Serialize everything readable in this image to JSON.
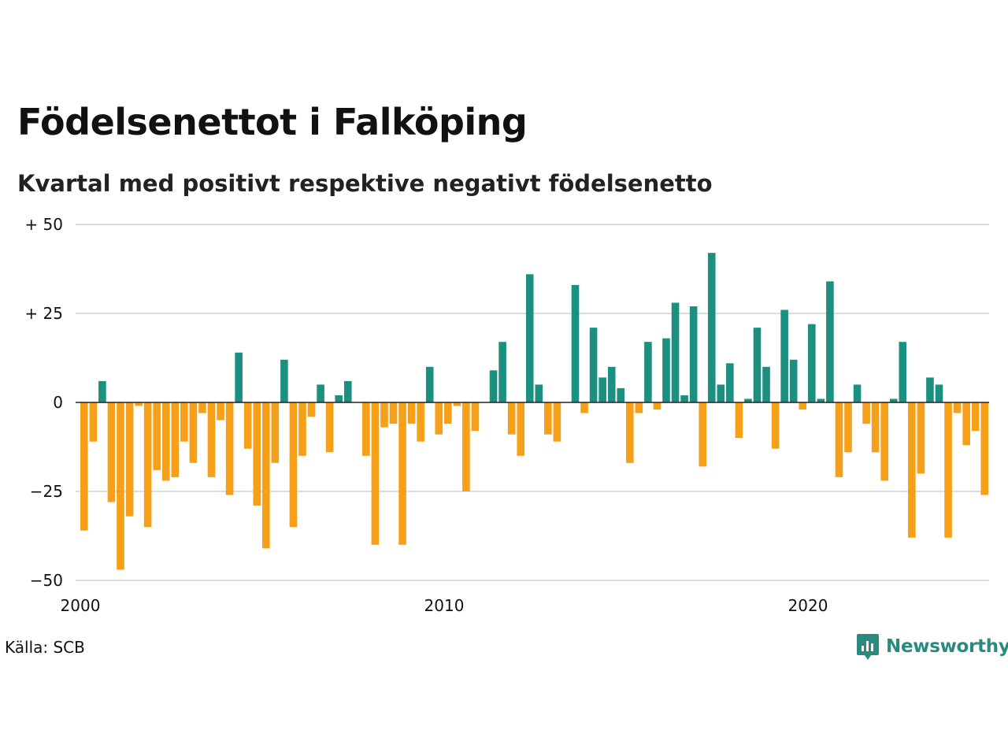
{
  "title": "Födelsenettot i Falköping",
  "subtitle": "Kvartal med positivt respektive negativt födelsenetto",
  "source": "Källa: SCB",
  "brand": "Newsworthy",
  "colors": {
    "positive": "#1b8f80",
    "negative": "#f6a01a",
    "grid": "#dcdcdc",
    "zero": "#222222",
    "brand": "#2a8a7f"
  },
  "icons": {
    "brand": "newsworthy-logo-icon"
  },
  "chart_data": {
    "type": "bar",
    "title": "Födelsenettot i Falköping",
    "subtitle": "Kvartal med positivt respektive negativt födelsenetto",
    "xlabel": "",
    "ylabel": "",
    "ylim": [
      -50,
      50
    ],
    "yticks": [
      50,
      25,
      0,
      -25,
      -50
    ],
    "ytick_labels": [
      "+ 50",
      "+ 25",
      "0",
      "−25",
      "−50"
    ],
    "xticks": [
      2000,
      2010,
      2020
    ],
    "xtick_labels": [
      "2000",
      "2010",
      "2020"
    ],
    "x_start_year": 2000,
    "periods_per_year": 4,
    "grid": true,
    "values": [
      -36,
      -11,
      6,
      -28,
      -47,
      -32,
      -1,
      -35,
      -19,
      -22,
      -21,
      -11,
      -17,
      -3,
      -21,
      -5,
      -26,
      14,
      -13,
      -29,
      -41,
      -17,
      12,
      -35,
      -15,
      -4,
      5,
      -14,
      2,
      6,
      0,
      -15,
      -40,
      -7,
      -6,
      -40,
      -6,
      -11,
      10,
      -9,
      -6,
      -1,
      -25,
      -8,
      0,
      9,
      17,
      -9,
      -15,
      36,
      5,
      -9,
      -11,
      0,
      33,
      -3,
      21,
      7,
      10,
      4,
      -17,
      -3,
      17,
      -2,
      18,
      28,
      2,
      27,
      -18,
      42,
      5,
      11,
      -10,
      1,
      21,
      10,
      -13,
      26,
      12,
      -2,
      22,
      1,
      34,
      -21,
      -14,
      5,
      -6,
      -14,
      -22,
      1,
      17,
      -38,
      -20,
      7,
      5,
      -38,
      -3,
      -12,
      -8,
      -26
    ]
  }
}
